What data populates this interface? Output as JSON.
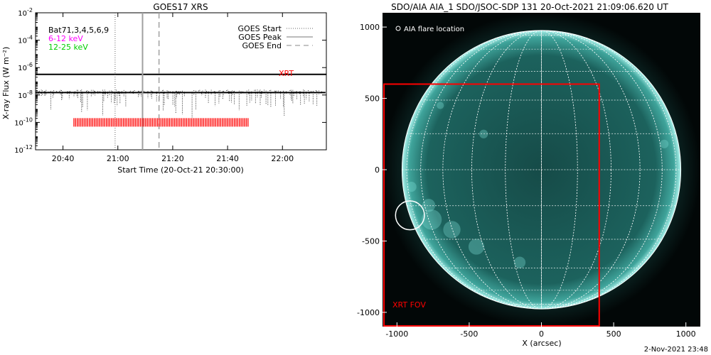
{
  "goes": {
    "title": "GOES17 XRS",
    "xlabel": "Start Time (20-Oct-21 20:30:00)",
    "ylabel": "X-ray Flux (W m⁻²)",
    "legend": {
      "start": "GOES Start",
      "peak": "GOES Peak",
      "end": "GOES End"
    },
    "bands": {
      "black": "Bat71,3,4,5,6,9",
      "magenta": "6-12 keV",
      "green": "12-25 keV"
    },
    "xrt_label": "XRT",
    "colors": {
      "magenta": "#ff00ff",
      "green": "#00d000",
      "red": "#ff0000",
      "gray": "#a0a0a0"
    }
  },
  "aia": {
    "title": "SDO/AIA AIA_1 SDO/JSOC-SDP 131 20-Oct-2021 21:09:06.620 UT",
    "legend": "AIA flare location",
    "xlabel": "X (arcsec)",
    "fov_label": "XRT FOV",
    "colors": {
      "disk": "#1f6f6a",
      "limb": "#9ff0ea",
      "fov": "#ff0000",
      "grid": "#ffffff"
    }
  },
  "footer": "2-Nov-2021 23:48",
  "chart_data": [
    {
      "type": "line",
      "title": "GOES17 XRS",
      "xlabel": "Start Time (20-Oct-21 20:30:00)",
      "ylabel": "X-ray Flux (W m^-2)",
      "y_scale": "log",
      "xlim": [
        "20:30",
        "22:16"
      ],
      "ylim": [
        1e-12,
        0.01
      ],
      "x_ticks": [
        "20:40",
        "21:00",
        "21:20",
        "21:40",
        "22:00"
      ],
      "y_ticks": [
        "10^-12",
        "10^-10",
        "10^-8",
        "10^-6",
        "10^-4",
        "10^-2"
      ],
      "markers": {
        "goes_start": "20:59",
        "goes_peak": "21:09",
        "goes_end": "21:15"
      },
      "series": [
        {
          "name": "XRT",
          "x": [
            "20:30",
            "20:40",
            "20:50",
            "21:00",
            "21:05",
            "21:09",
            "21:15",
            "21:20",
            "21:25",
            "21:30",
            "21:33",
            "21:36",
            "21:40",
            "21:45",
            "21:50",
            "21:55",
            "22:00",
            "22:05",
            "22:10",
            "22:16"
          ],
          "values": [
            1.2e-07,
            1.5e-07,
            1.7e-07,
            1.9e-07,
            2.2e-07,
            2.6e-07,
            2e-07,
            1.7e-07,
            1.6e-07,
            1.8e-07,
            2.6e-07,
            2.3e-07,
            4e-07,
            6.5e-07,
            6.3e-07,
            5.6e-07,
            5e-07,
            4.2e-07,
            3.6e-07,
            3.2e-07
          ]
        },
        {
          "name": "Bat71,3,4,5,6,9",
          "x": [
            "20:30",
            "20:40",
            "20:50",
            "21:00",
            "21:09",
            "21:20",
            "21:30",
            "21:40",
            "21:45",
            "21:50",
            "22:00",
            "22:10",
            "22:16"
          ],
          "values": [
            1.2e-08,
            1.4e-08,
            1.5e-08,
            1.6e-08,
            1.7e-08,
            1.3e-08,
            1.7e-08,
            3.5e-08,
            5e-08,
            2.8e-08,
            2e-08,
            1.6e-08,
            1.5e-08
          ]
        }
      ],
      "xrt_observation_span": [
        "20:44",
        "21:48"
      ]
    },
    {
      "type": "scatter",
      "title": "SDO/AIA AIA_1 SDO/JSOC-SDP 131 20-Oct-2021 21:09:06.620 UT",
      "xlabel": "X (arcsec)",
      "ylabel": "",
      "xlim": [
        -1100,
        1100
      ],
      "ylim": [
        -1100,
        1100
      ],
      "x_ticks": [
        -1000,
        -500,
        0,
        500,
        1000
      ],
      "y_ticks": [
        -1000,
        -500,
        0,
        500,
        1000
      ],
      "solar_radius_arcsec": 965,
      "flare_location": {
        "x": -910,
        "y": -320,
        "r": 100
      },
      "xrt_fov": {
        "x0": -1100,
        "x1": 400,
        "y0": -1100,
        "y1": 600
      }
    }
  ]
}
